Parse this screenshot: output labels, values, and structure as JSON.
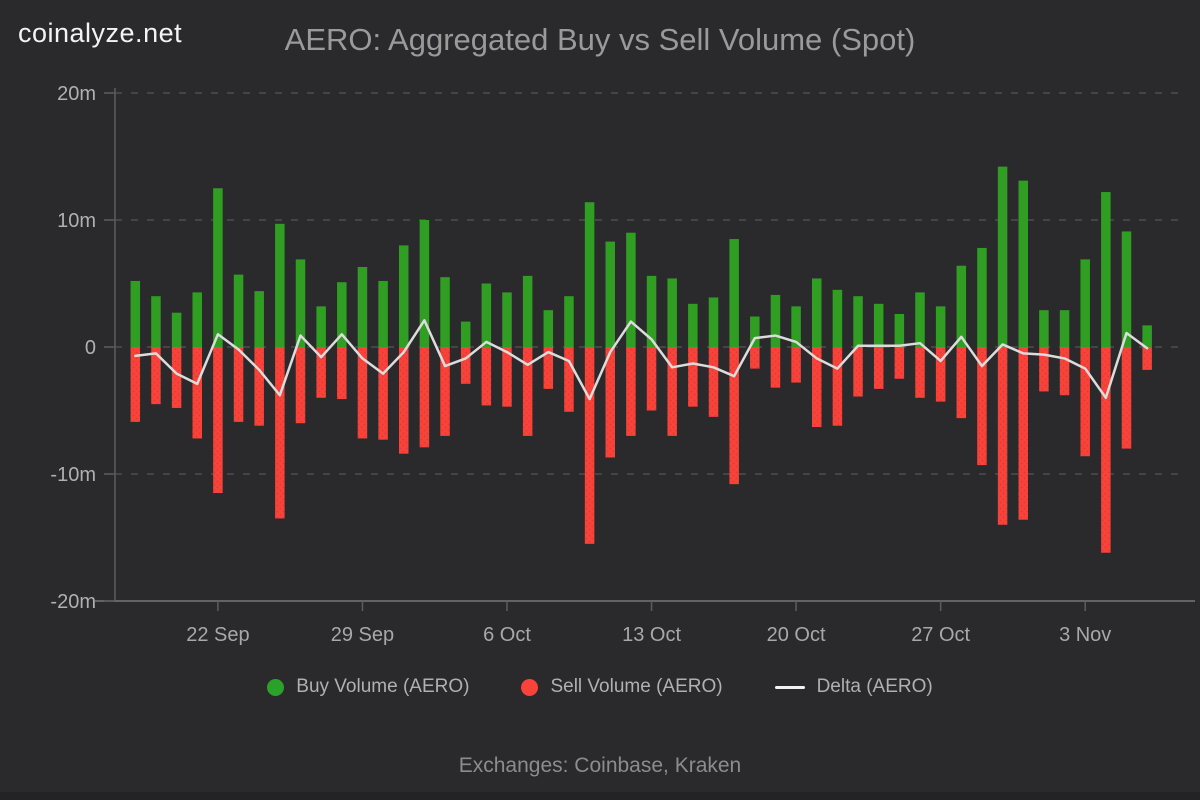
{
  "page": {
    "logo": "coinalyze.net",
    "title": "AERO: Aggregated Buy vs Sell Volume (Spot)",
    "footer": "Exchanges: Coinbase, Kraken"
  },
  "legend": [
    {
      "label": "Buy Volume (AERO)",
      "marker": "dot",
      "color": "#2aa22a"
    },
    {
      "label": "Sell Volume (AERO)",
      "marker": "dot",
      "color": "#f8423a"
    },
    {
      "label": "Delta (AERO)",
      "marker": "line",
      "color": "#f2f2f2"
    }
  ],
  "colors": {
    "background": "#2a2a2c",
    "buy": "#2f9e23",
    "sell": "#f8423a",
    "delta_line": "#dcdcdc",
    "gridline": "#4e4e50",
    "axis": "#767676",
    "tick": "#5a5a5a",
    "axis_label": "#b0b0b0",
    "title": "#9a9a9a"
  },
  "chart_data": {
    "type": "bar",
    "title": "AERO: Aggregated Buy vs Sell Volume (Spot)",
    "subtitle": "Exchanges: Coinbase, Kraken",
    "unit": "m = millions (AERO)",
    "sell_plotted_negative": true,
    "grid": "horizontal-dashed",
    "legend_position": "bottom",
    "ylim_millions": [
      -20,
      20
    ],
    "y_ticks": [
      {
        "label": "20m",
        "value": 20
      },
      {
        "label": "10m",
        "value": 10
      },
      {
        "label": "0",
        "value": 0
      },
      {
        "label": "-10m",
        "value": -10
      },
      {
        "label": "-20m",
        "value": -20
      }
    ],
    "x_ticks": [
      {
        "label": "22 Sep",
        "index": 4
      },
      {
        "label": "29 Sep",
        "index": 11
      },
      {
        "label": "6 Oct",
        "index": 18
      },
      {
        "label": "13 Oct",
        "index": 25
      },
      {
        "label": "20 Oct",
        "index": 32
      },
      {
        "label": "27 Oct",
        "index": 39
      },
      {
        "label": "3 Nov",
        "index": 46
      }
    ],
    "categories": [
      "18 Sep",
      "19 Sep",
      "20 Sep",
      "21 Sep",
      "22 Sep",
      "23 Sep",
      "24 Sep",
      "25 Sep",
      "26 Sep",
      "27 Sep",
      "28 Sep",
      "29 Sep",
      "30 Sep",
      "1 Oct",
      "2 Oct",
      "3 Oct",
      "4 Oct",
      "5 Oct",
      "6 Oct",
      "7 Oct",
      "8 Oct",
      "9 Oct",
      "10 Oct",
      "11 Oct",
      "12 Oct",
      "13 Oct",
      "14 Oct",
      "15 Oct",
      "16 Oct",
      "17 Oct",
      "18 Oct",
      "19 Oct",
      "20 Oct",
      "21 Oct",
      "22 Oct",
      "23 Oct",
      "24 Oct",
      "25 Oct",
      "26 Oct",
      "27 Oct",
      "28 Oct",
      "29 Oct",
      "30 Oct",
      "31 Oct",
      "1 Nov",
      "2 Nov",
      "3 Nov",
      "4 Nov",
      "5 Nov",
      "6 Nov"
    ],
    "series": [
      {
        "name": "Buy Volume (AERO)",
        "type": "bar",
        "color": "#2f9e23",
        "values_millions": [
          5.2,
          4.0,
          2.7,
          4.3,
          12.5,
          5.7,
          4.4,
          9.7,
          6.9,
          3.2,
          5.1,
          6.3,
          5.2,
          8.0,
          10.0,
          5.5,
          2.0,
          5.0,
          4.3,
          5.6,
          2.9,
          4.0,
          11.4,
          8.3,
          9.0,
          5.6,
          5.4,
          3.4,
          3.9,
          8.5,
          2.4,
          4.1,
          3.2,
          5.4,
          4.5,
          4.0,
          3.4,
          2.6,
          4.3,
          3.2,
          6.4,
          7.8,
          14.2,
          13.1,
          2.9,
          2.9,
          6.9,
          12.2,
          9.1,
          1.7
        ]
      },
      {
        "name": "Sell Volume (AERO)",
        "type": "bar",
        "color": "#f8423a",
        "values_millions": [
          5.9,
          4.5,
          4.8,
          7.2,
          11.5,
          5.9,
          6.2,
          13.5,
          6.0,
          4.0,
          4.1,
          7.2,
          7.3,
          8.4,
          7.9,
          7.0,
          2.9,
          4.6,
          4.7,
          7.0,
          3.3,
          5.1,
          15.5,
          8.7,
          7.0,
          5.0,
          7.0,
          4.7,
          5.5,
          10.8,
          1.7,
          3.2,
          2.8,
          6.3,
          6.2,
          3.9,
          3.3,
          2.5,
          4.0,
          4.3,
          5.6,
          9.3,
          14.0,
          13.6,
          3.5,
          3.8,
          8.6,
          16.2,
          8.0,
          1.8
        ]
      },
      {
        "name": "Delta (AERO)",
        "type": "line",
        "color": "#dcdcdc",
        "values_millions": [
          -0.7,
          -0.5,
          -2.1,
          -2.9,
          1.0,
          -0.2,
          -1.8,
          -3.8,
          0.9,
          -0.8,
          1.0,
          -0.9,
          -2.1,
          -0.4,
          2.1,
          -1.5,
          -0.9,
          0.4,
          -0.4,
          -1.4,
          -0.4,
          -1.1,
          -4.1,
          -0.4,
          2.0,
          0.6,
          -1.6,
          -1.3,
          -1.6,
          -2.3,
          0.7,
          0.9,
          0.4,
          -0.9,
          -1.7,
          0.1,
          0.1,
          0.1,
          0.3,
          -1.1,
          0.8,
          -1.5,
          0.2,
          -0.5,
          -0.6,
          -0.9,
          -1.7,
          -4.0,
          1.1,
          -0.1
        ]
      }
    ]
  }
}
